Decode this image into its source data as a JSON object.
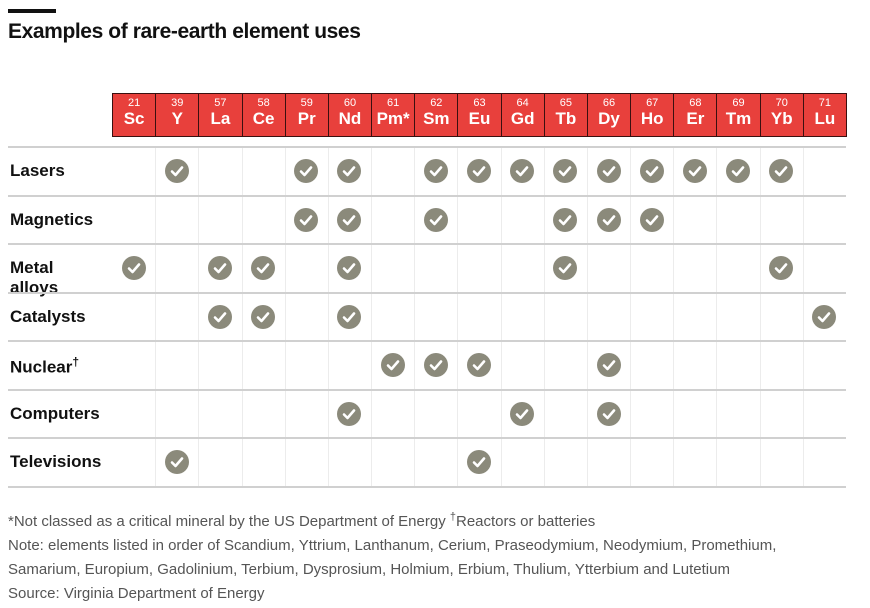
{
  "title": "Examples of rare-earth element uses",
  "colors": {
    "header": "#e8403c",
    "check": "#8b8a7b"
  },
  "chart_data": {
    "type": "table",
    "columns": [
      {
        "number": "21",
        "symbol": "Sc"
      },
      {
        "number": "39",
        "symbol": "Y"
      },
      {
        "number": "57",
        "symbol": "La"
      },
      {
        "number": "58",
        "symbol": "Ce"
      },
      {
        "number": "59",
        "symbol": "Pr"
      },
      {
        "number": "60",
        "symbol": "Nd"
      },
      {
        "number": "61",
        "symbol": "Pm*"
      },
      {
        "number": "62",
        "symbol": "Sm"
      },
      {
        "number": "63",
        "symbol": "Eu"
      },
      {
        "number": "64",
        "symbol": "Gd"
      },
      {
        "number": "65",
        "symbol": "Tb"
      },
      {
        "number": "66",
        "symbol": "Dy"
      },
      {
        "number": "67",
        "symbol": "Ho"
      },
      {
        "number": "68",
        "symbol": "Er"
      },
      {
        "number": "69",
        "symbol": "Tm"
      },
      {
        "number": "70",
        "symbol": "Yb"
      },
      {
        "number": "71",
        "symbol": "Lu"
      }
    ],
    "rows": [
      {
        "label": "Lasers",
        "mark": "",
        "uses": [
          "Y",
          "Pr",
          "Nd",
          "Sm",
          "Eu",
          "Gd",
          "Tb",
          "Dy",
          "Ho",
          "Er",
          "Tm",
          "Yb"
        ]
      },
      {
        "label": "Magnetics",
        "mark": "",
        "uses": [
          "Pr",
          "Nd",
          "Sm",
          "Tb",
          "Dy",
          "Ho"
        ]
      },
      {
        "label": "Metal alloys",
        "mark": "",
        "uses": [
          "Sc",
          "La",
          "Ce",
          "Nd",
          "Tb",
          "Yb"
        ]
      },
      {
        "label": "Catalysts",
        "mark": "",
        "uses": [
          "La",
          "Ce",
          "Nd",
          "Lu"
        ]
      },
      {
        "label": "Nuclear",
        "mark": "†",
        "uses": [
          "Pm*",
          "Sm",
          "Eu",
          "Dy"
        ]
      },
      {
        "label": "Computers",
        "mark": "",
        "uses": [
          "Nd",
          "Gd",
          "Dy"
        ]
      },
      {
        "label": "Televisions",
        "mark": "",
        "uses": [
          "Y",
          "Eu"
        ]
      }
    ]
  },
  "notes": {
    "footnote_star": "*Not classed as a critical mineral by the US Department of Energy ",
    "footnote_dagger_mark": "†",
    "footnote_dagger": "Reactors or batteries",
    "note_line1": "Note: elements listed in order of Scandium, Yttrium, Lanthanum, Cerium, Praseodymium, Neodymium, Promethium,",
    "note_line2": "Samarium, Europium, Gadolinium, Terbium, Dysprosium, Holmium, Erbium, Thulium, Ytterbium and Lutetium",
    "source": "Source: Virginia Department of Energy"
  }
}
